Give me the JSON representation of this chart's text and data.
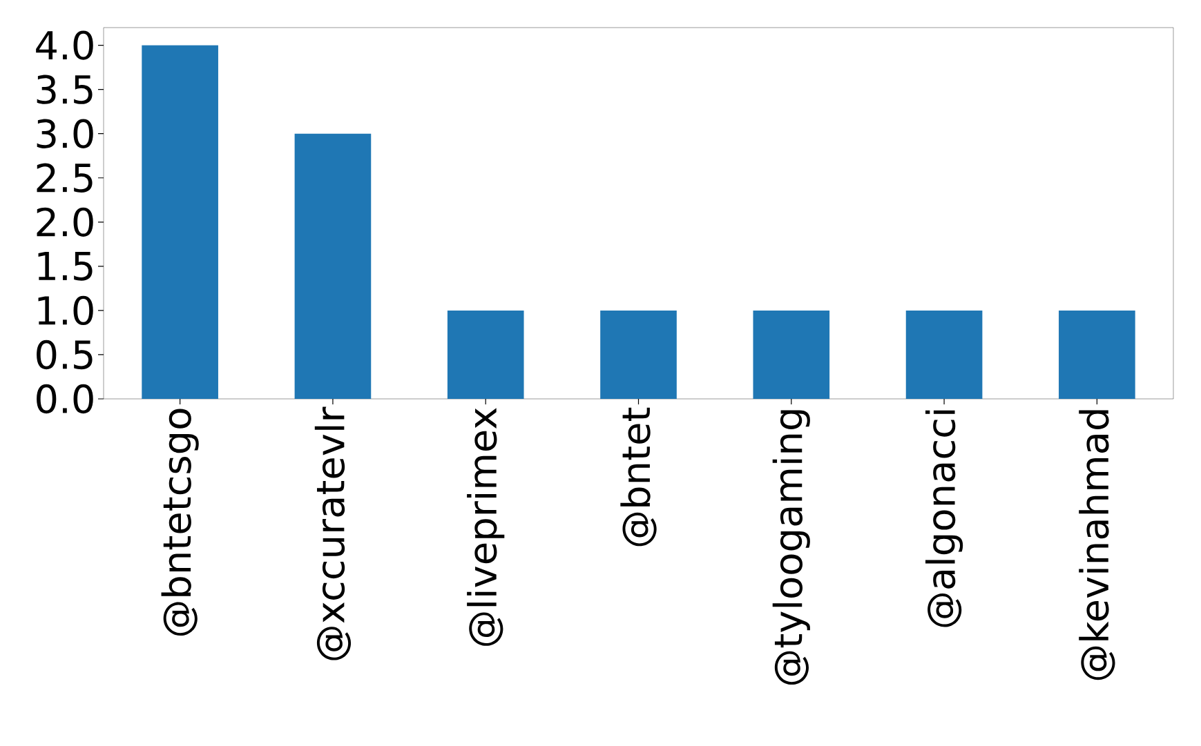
{
  "chart_data": {
    "type": "bar",
    "categories": [
      "@bntetcsgo",
      "@xccuratevlr",
      "@liveprimex",
      "@bntet",
      "@tyloogaming",
      "@algonacci",
      "@kevinahmad"
    ],
    "values": [
      4,
      3,
      1,
      1,
      1,
      1,
      1
    ],
    "color": "#1f77b4",
    "ylim": [
      0,
      4.2
    ],
    "yticks": [
      {
        "value": 0,
        "label": "0.0"
      },
      {
        "value": 0.5,
        "label": "0.5"
      },
      {
        "value": 1,
        "label": "1.0"
      },
      {
        "value": 1.5,
        "label": "1.5"
      },
      {
        "value": 2,
        "label": "2.0"
      },
      {
        "value": 2.5,
        "label": "2.5"
      },
      {
        "value": 3,
        "label": "3.0"
      },
      {
        "value": 3.5,
        "label": "3.5"
      },
      {
        "value": 4,
        "label": "4.0"
      }
    ],
    "grid": false
  }
}
